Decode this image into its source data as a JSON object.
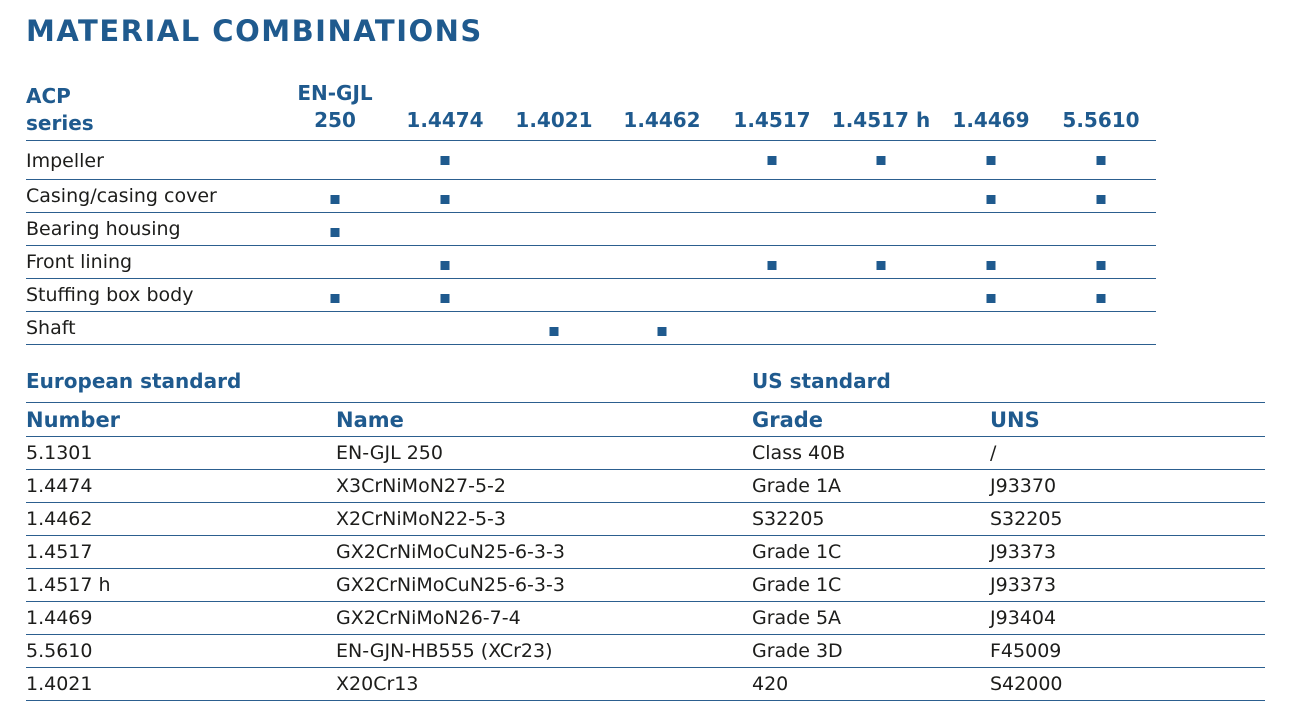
{
  "title": "MATERIAL COMBINATIONS",
  "combinations": {
    "series_label_line1": "ACP",
    "series_label_line2": "series",
    "materials": [
      {
        "line1": "EN-GJL",
        "line2": "250"
      },
      {
        "line1": "",
        "line2": "1.4474"
      },
      {
        "line1": "",
        "line2": "1.4021"
      },
      {
        "line1": "",
        "line2": "1.4462"
      },
      {
        "line1": "",
        "line2": "1.4517"
      },
      {
        "line1": "",
        "line2": "1.4517 h"
      },
      {
        "line1": "",
        "line2": "1.4469"
      },
      {
        "line1": "",
        "line2": "5.5610"
      }
    ],
    "rows": [
      {
        "label": "Impeller",
        "marks": [
          false,
          true,
          false,
          false,
          true,
          true,
          true,
          true
        ]
      },
      {
        "label": "Casing/casing cover",
        "marks": [
          true,
          true,
          false,
          false,
          false,
          false,
          true,
          true
        ]
      },
      {
        "label": "Bearing housing",
        "marks": [
          true,
          false,
          false,
          false,
          false,
          false,
          false,
          false
        ]
      },
      {
        "label": "Front lining",
        "marks": [
          false,
          true,
          false,
          false,
          true,
          true,
          true,
          true
        ]
      },
      {
        "label": "Stuffing box body",
        "marks": [
          true,
          true,
          false,
          false,
          false,
          false,
          true,
          true
        ]
      },
      {
        "label": "Shaft",
        "marks": [
          false,
          false,
          true,
          true,
          false,
          false,
          false,
          false
        ]
      }
    ]
  },
  "standards": {
    "european_label": "European standard",
    "us_label": "US standard",
    "headers": [
      "Number",
      "Name",
      "Grade",
      "UNS"
    ],
    "rows": [
      [
        "5.1301",
        "EN-GJL 250",
        "Class 40B",
        "/"
      ],
      [
        "1.4474",
        "X3CrNiMoN27-5-2",
        "Grade 1A",
        "J93370"
      ],
      [
        "1.4462",
        "X2CrNiMoN22-5-3",
        "S32205",
        "S32205"
      ],
      [
        "1.4517",
        "GX2CrNiMoCuN25-6-3-3",
        "Grade 1C",
        "J93373"
      ],
      [
        "1.4517 h",
        "GX2CrNiMoCuN25-6-3-3",
        "Grade 1C",
        "J93373"
      ],
      [
        "1.4469",
        "GX2CrNiMoN26-7-4",
        "Grade 5A",
        "J93404"
      ],
      [
        "5.5610",
        "EN-GJN-HB555 (XCr23)",
        "Grade 3D",
        "F45009"
      ],
      [
        "1.4021",
        "X20Cr13",
        "420",
        "S42000"
      ]
    ]
  },
  "colors": {
    "accent": "#1f5a8e",
    "rule": "#2c5f8f",
    "text": "#1d1d1b"
  }
}
